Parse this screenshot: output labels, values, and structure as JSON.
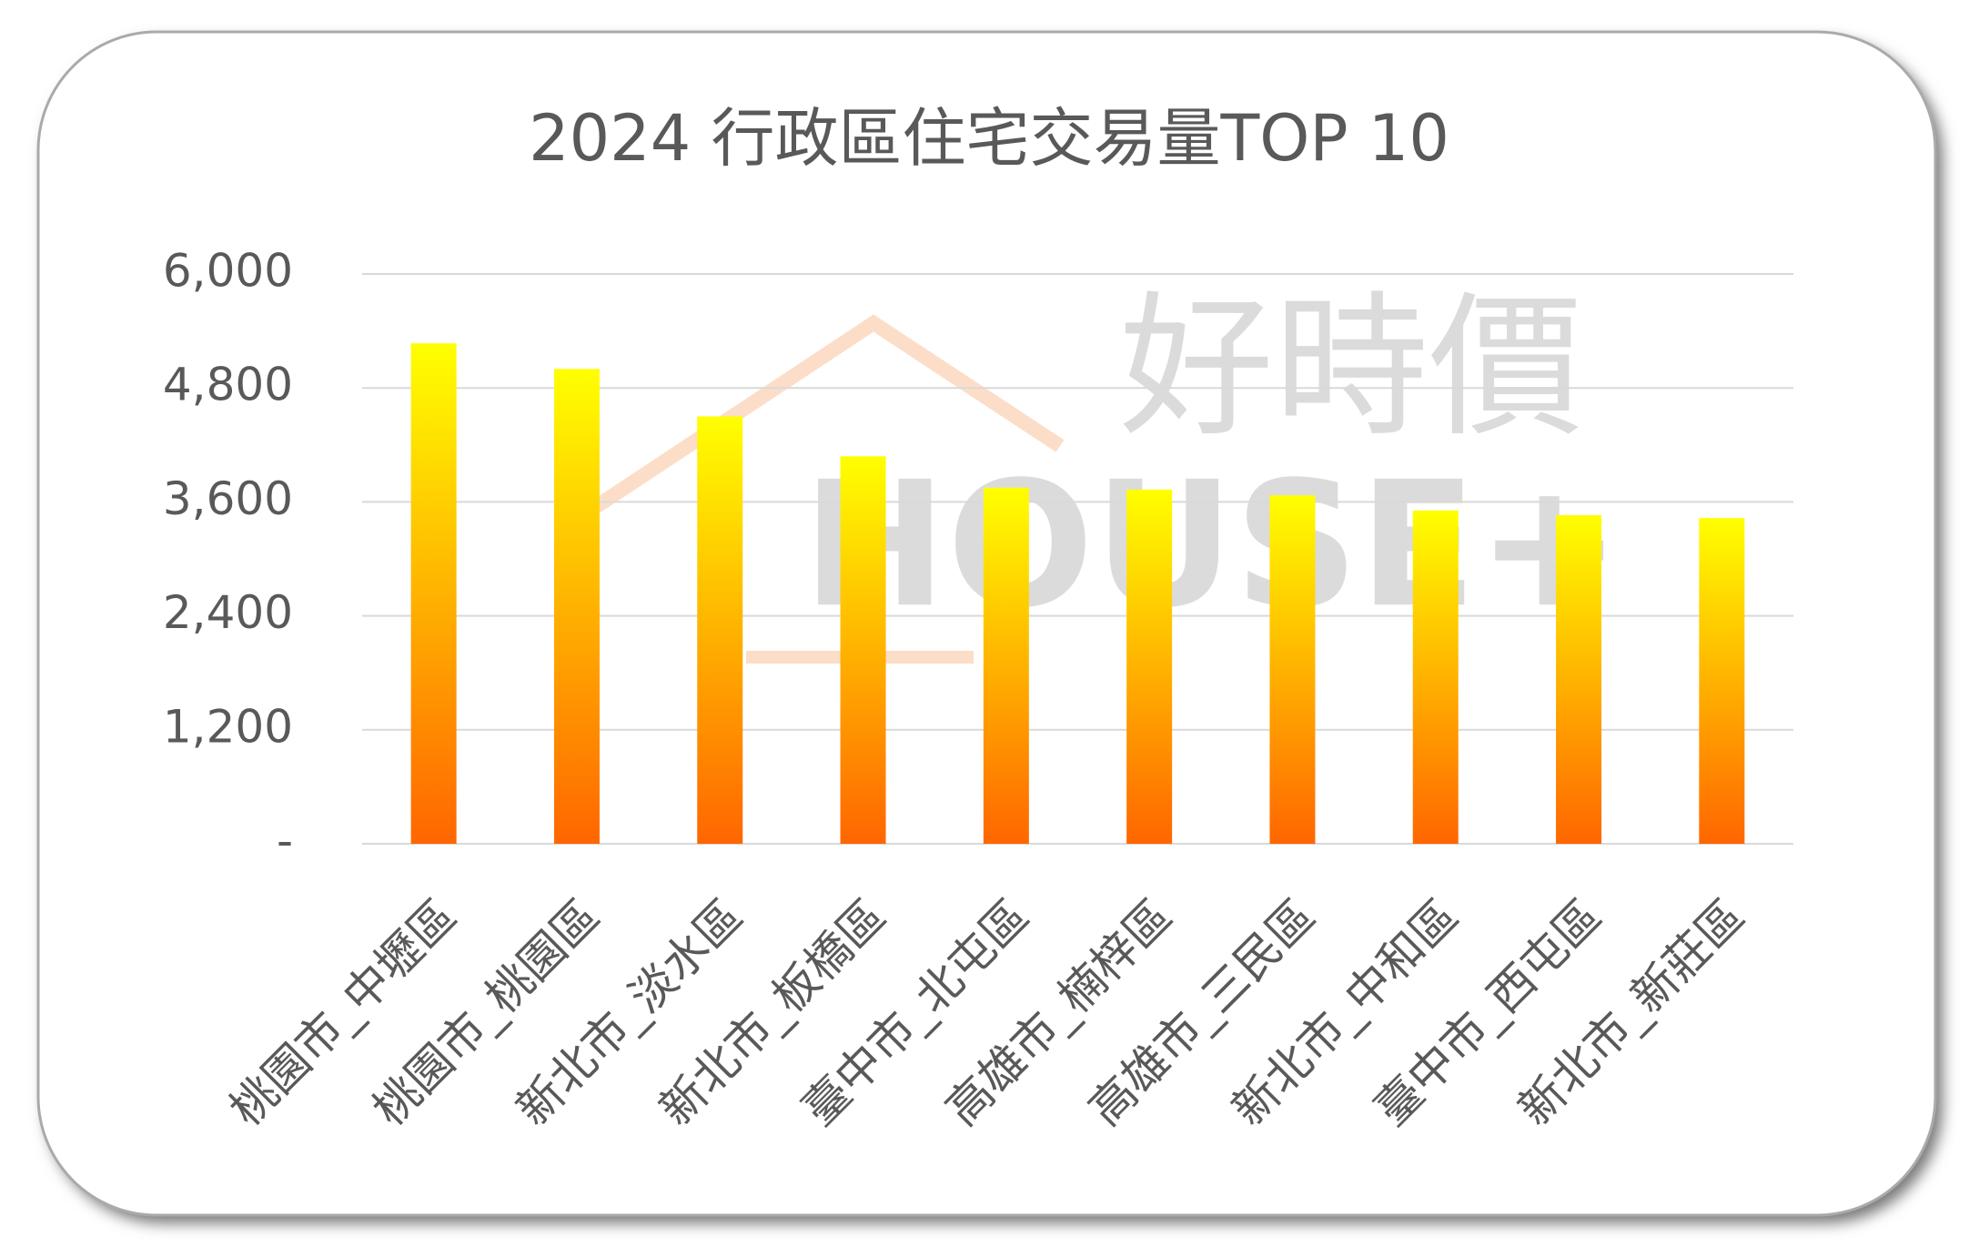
{
  "chart_data": {
    "type": "bar",
    "title": "2024  行政區住宅交易量TOP 10",
    "watermark": [
      "好時價",
      "HOUSE+"
    ],
    "categories": [
      "桃園市_中壢區",
      "桃園市_桃園區",
      "新北市_淡水區",
      "新北市_板橋區",
      "臺中市_北屯區",
      "高雄市_楠梓區",
      "高雄市_三民區",
      "新北市_中和區",
      "臺中市_西屯區",
      "新北市_新莊區"
    ],
    "values": [
      5270,
      5000,
      4500,
      4080,
      3750,
      3730,
      3670,
      3510,
      3460,
      3430
    ],
    "color": [
      "#ffff00",
      "#ff6600"
    ],
    "ylim": [
      0,
      6000
    ],
    "yticks": [
      {
        "value": 0,
        "label": "-"
      },
      {
        "value": 1200,
        "label": "1,200"
      },
      {
        "value": 2400,
        "label": "2,400"
      },
      {
        "value": 3600,
        "label": "3,600"
      },
      {
        "value": 4800,
        "label": "4,800"
      },
      {
        "value": 6000,
        "label": "6,000"
      }
    ],
    "grid": true
  }
}
